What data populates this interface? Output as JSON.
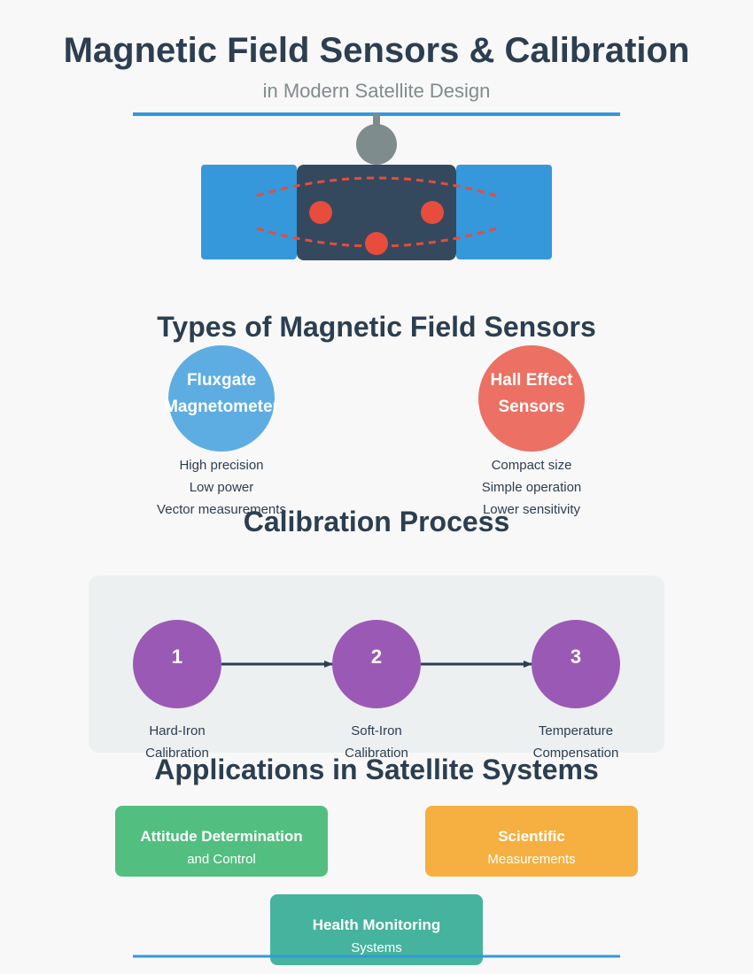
{
  "header": {
    "title": "Magnetic Field Sensors & Calibration",
    "subtitle": "in Modern Satellite Design"
  },
  "sensors": {
    "heading": "Types of Magnetic Field Sensors",
    "items": [
      {
        "name_lines": [
          "Fluxgate",
          "Magnetometer"
        ],
        "color": "#5dade2",
        "features": [
          "High precision",
          "Low power",
          "Vector measurements"
        ]
      },
      {
        "name_lines": [
          "Hall Effect",
          "Sensors"
        ],
        "color": "#ec7063",
        "features": [
          "Compact size",
          "Simple operation",
          "Lower sensitivity"
        ]
      }
    ]
  },
  "calibration": {
    "heading": "Calibration Process",
    "steps": [
      {
        "number": "1",
        "label_lines": [
          "Hard-Iron",
          "Calibration"
        ]
      },
      {
        "number": "2",
        "label_lines": [
          "Soft-Iron",
          "Calibration"
        ]
      },
      {
        "number": "3",
        "label_lines": [
          "Temperature",
          "Compensation"
        ]
      }
    ]
  },
  "applications": {
    "heading": "Applications in Satellite Systems",
    "items": [
      {
        "title": "Attitude Determination",
        "subtitle": "and Control",
        "color": "#52be80"
      },
      {
        "title": "Scientific",
        "subtitle": "Measurements",
        "color": "#f5b041"
      },
      {
        "title": "Health Monitoring",
        "subtitle": "Systems",
        "color": "#45b39d"
      }
    ]
  },
  "colors": {
    "accent_rule": "#3498db",
    "solar_panel": "#3498db",
    "satellite_body": "#34495e",
    "antenna": "#7f8c8d",
    "sensor_dot": "#e74c3c",
    "step_circle": "#9b59b6",
    "arrow": "#2c3e50",
    "calibration_panel": "#ecf0f1"
  }
}
